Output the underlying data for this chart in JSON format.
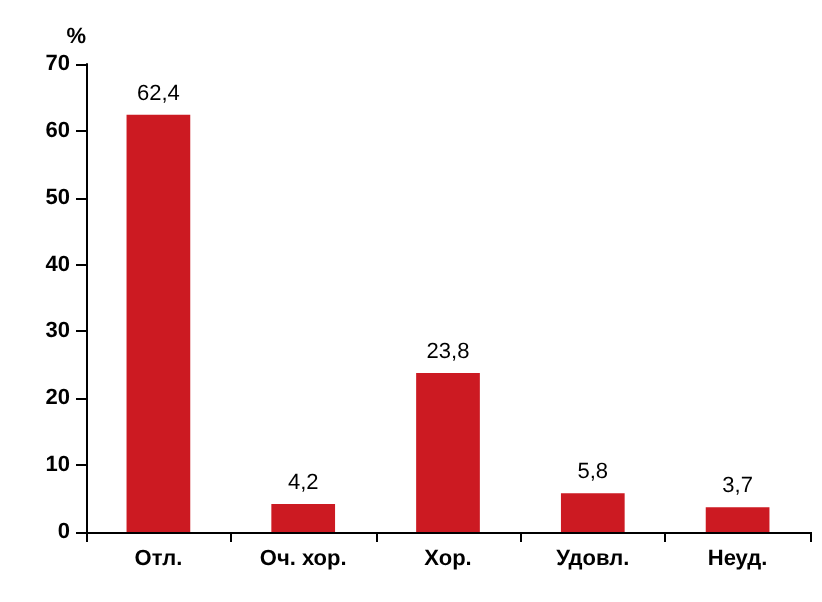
{
  "chart_data": {
    "type": "bar",
    "ylabel": "%",
    "categories": [
      "Отл.",
      "Оч. хор.",
      "Хор.",
      "Удовл.",
      "Неуд."
    ],
    "values": [
      62.4,
      4.2,
      23.8,
      5.8,
      3.7
    ],
    "value_labels": [
      "62,4",
      "4,2",
      "23,8",
      "5,8",
      "3,7"
    ],
    "color": "#cc1a22",
    "ylim": [
      0,
      70
    ],
    "yticks": [
      0,
      10,
      20,
      30,
      40,
      50,
      60,
      70
    ],
    "grid": false
  }
}
